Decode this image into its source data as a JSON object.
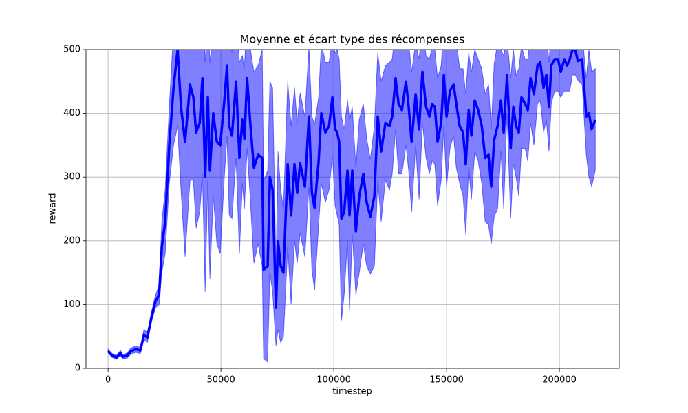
{
  "chart_data": {
    "type": "line",
    "title": "Moyenne et écart type des récompenses",
    "x_label": "timestep",
    "y_label": "reward",
    "xlim": [
      -9800,
      226500
    ],
    "ylim": [
      0,
      500
    ],
    "xticks": [
      0,
      50000,
      100000,
      150000,
      200000
    ],
    "yticks": [
      0,
      100,
      200,
      300,
      400,
      500
    ],
    "grid": true,
    "x": [
      0,
      1800,
      3700,
      5500,
      6400,
      8500,
      10100,
      12200,
      14300,
      15900,
      17400,
      19200,
      21000,
      22600,
      23800,
      25300,
      27100,
      29000,
      30800,
      32300,
      34100,
      36300,
      37800,
      39000,
      40600,
      41800,
      43000,
      44200,
      45100,
      46600,
      48200,
      49700,
      51500,
      52700,
      53700,
      54900,
      56700,
      58200,
      59500,
      60400,
      61600,
      63100,
      64600,
      66500,
      68300,
      68900,
      70700,
      71700,
      72900,
      74400,
      75300,
      76500,
      77700,
      79600,
      81100,
      82600,
      83800,
      85100,
      87200,
      89000,
      90300,
      91500,
      93300,
      94500,
      96300,
      97900,
      99400,
      100600,
      101500,
      102400,
      103400,
      104600,
      106100,
      107000,
      108200,
      109800,
      111300,
      113100,
      114600,
      116200,
      118000,
      119500,
      121000,
      122900,
      124700,
      125900,
      127400,
      128700,
      130200,
      132000,
      133200,
      134500,
      136300,
      137800,
      139300,
      140900,
      142400,
      143600,
      144800,
      146000,
      147600,
      148800,
      150000,
      151500,
      153100,
      154300,
      155800,
      157300,
      158500,
      159800,
      161000,
      162500,
      164000,
      165600,
      167100,
      168600,
      169800,
      171100,
      172600,
      174100,
      175300,
      176800,
      178400,
      179600,
      180800,
      182000,
      183200,
      184800,
      186000,
      187200,
      188700,
      190300,
      191500,
      193000,
      194200,
      195400,
      196400,
      197900,
      199400,
      200600,
      202200,
      203400,
      204600,
      205800,
      207000,
      208200,
      210100,
      211900,
      213100,
      214300,
      215900
    ],
    "series": [
      {
        "color": "#0000ff",
        "band_opacity": 0.5,
        "values": [
          27,
          20,
          17,
          24,
          18,
          20,
          27,
          30,
          28,
          53,
          48,
          80,
          105,
          115,
          190,
          230,
          350,
          440,
          500,
          410,
          355,
          445,
          425,
          370,
          385,
          455,
          300,
          425,
          310,
          400,
          355,
          350,
          420,
          475,
          380,
          365,
          450,
          330,
          390,
          360,
          455,
          380,
          315,
          335,
          330,
          155,
          160,
          300,
          280,
          95,
          200,
          160,
          150,
          320,
          240,
          320,
          275,
          322,
          285,
          395,
          275,
          252,
          325,
          400,
          370,
          380,
          425,
          375,
          370,
          355,
          235,
          245,
          310,
          240,
          310,
          215,
          270,
          305,
          260,
          238,
          270,
          395,
          340,
          385,
          380,
          395,
          455,
          415,
          405,
          450,
          410,
          355,
          430,
          375,
          465,
          410,
          395,
          415,
          410,
          355,
          385,
          460,
          395,
          435,
          445,
          415,
          380,
          370,
          320,
          405,
          365,
          420,
          405,
          380,
          330,
          335,
          285,
          358,
          380,
          420,
          370,
          460,
          345,
          410,
          380,
          370,
          425,
          415,
          405,
          455,
          430,
          475,
          480,
          440,
          460,
          410,
          475,
          485,
          485,
          465,
          485,
          475,
          485,
          500,
          500,
          482,
          485,
          395,
          400,
          375,
          390
        ],
        "std": [
          3,
          3,
          3,
          4,
          3,
          4,
          5,
          5,
          5,
          8,
          8,
          8,
          10,
          15,
          40,
          50,
          60,
          90,
          120,
          130,
          180,
          150,
          130,
          150,
          140,
          150,
          180,
          130,
          170,
          130,
          160,
          170,
          120,
          110,
          140,
          130,
          120,
          150,
          100,
          110,
          110,
          120,
          150,
          140,
          170,
          140,
          150,
          150,
          160,
          60,
          140,
          120,
          100,
          130,
          140,
          120,
          110,
          110,
          110,
          110,
          120,
          130,
          100,
          110,
          110,
          100,
          90,
          120,
          130,
          130,
          160,
          130,
          110,
          150,
          100,
          100,
          120,
          110,
          100,
          90,
          110,
          100,
          110,
          90,
          100,
          90,
          80,
          110,
          100,
          100,
          100,
          110,
          80,
          110,
          80,
          80,
          90,
          90,
          90,
          100,
          90,
          80,
          110,
          90,
          80,
          100,
          90,
          100,
          110,
          90,
          100,
          80,
          80,
          90,
          100,
          110,
          90,
          120,
          130,
          80,
          120,
          60,
          110,
          90,
          80,
          100,
          80,
          70,
          80,
          70,
          80,
          60,
          60,
          70,
          70,
          70,
          60,
          50,
          50,
          40,
          50,
          40,
          50,
          40,
          40,
          30,
          40,
          60,
          100,
          90,
          80
        ]
      }
    ]
  }
}
